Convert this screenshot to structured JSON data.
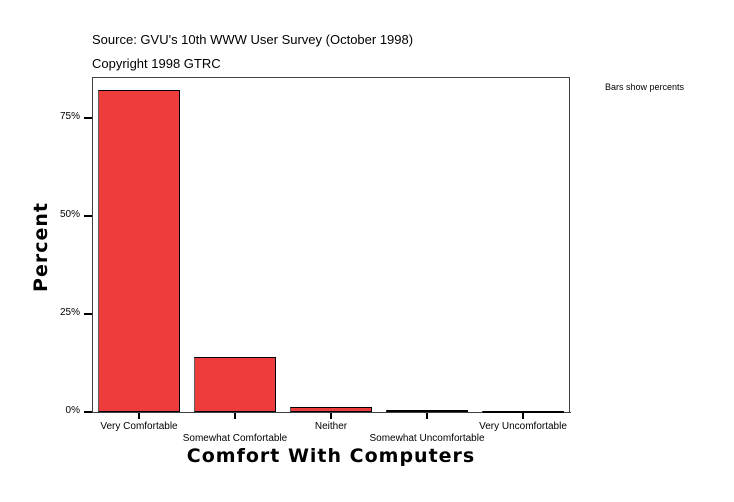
{
  "header": {
    "source": "Source: GVU's 10th WWW User Survey (October 1998)",
    "copyright": "Copyright 1998 GTRC"
  },
  "note": "Bars show percents",
  "colors": {
    "bar": "#ee3b3b",
    "frame": "#404040"
  },
  "chart_data": {
    "type": "bar",
    "title": "Source: GVU's 10th WWW User Survey (October 1998)",
    "subtitle": "Copyright 1998 GTRC",
    "xlabel": "Comfort With Computers",
    "ylabel": "Percent",
    "categories": [
      "Very Comfortable",
      "Somewhat Comfortable",
      "Neither",
      "Somewhat Uncomfortable",
      "Very Uncomfortable"
    ],
    "values": [
      82.1,
      14.0,
      1.3,
      0.6,
      0.2
    ],
    "yticks": [
      "0%",
      "25%",
      "50%",
      "75%"
    ],
    "ylim": [
      0,
      85.5
    ],
    "grid": false,
    "legend": "none",
    "annotation": "Bars show percents"
  }
}
